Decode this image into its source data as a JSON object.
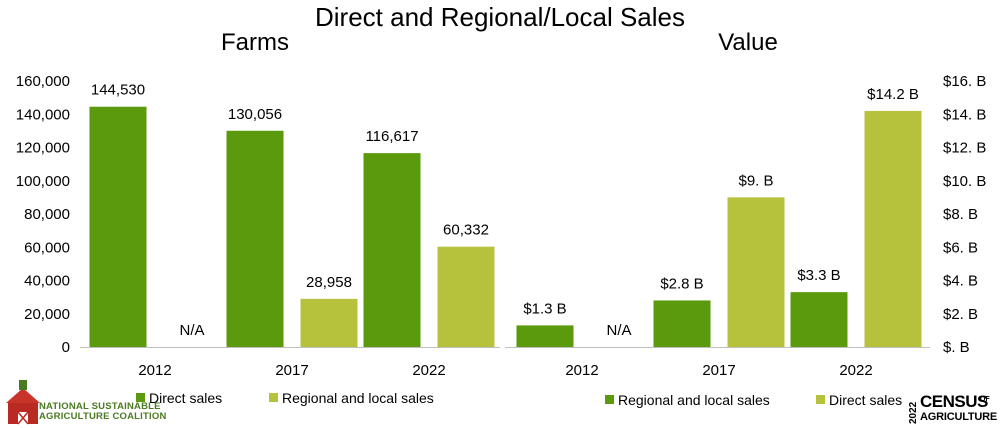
{
  "title": "Direct and Regional/Local Sales",
  "colors": {
    "dark_green": "#5a9a0c",
    "light_green": "#b6c23c",
    "axis": "#bfbfbf"
  },
  "chart_data": [
    {
      "type": "bar",
      "subtitle": "Farms",
      "categories": [
        "2012",
        "2017",
        "2022"
      ],
      "series": [
        {
          "name": "Direct sales",
          "color": "#5a9a0c",
          "values": [
            144530,
            130056,
            116617
          ],
          "labels": [
            "144,530",
            "130,056",
            "116,617"
          ]
        },
        {
          "name": "Regional and local sales",
          "color": "#b6c23c",
          "values": [
            null,
            28958,
            60332
          ],
          "labels": [
            "N/A",
            "28,958",
            "60,332"
          ]
        }
      ],
      "ylim": [
        0,
        160000
      ],
      "yticks": [
        "0",
        "20,000",
        "40,000",
        "60,000",
        "80,000",
        "100,000",
        "120,000",
        "140,000",
        "160,000"
      ],
      "axis_side": "left",
      "legend": "bottom"
    },
    {
      "type": "bar",
      "subtitle": "Value",
      "categories": [
        "2012",
        "2017",
        "2022"
      ],
      "series": [
        {
          "name": "Regional and local sales",
          "color": "#5a9a0c",
          "values": [
            1.3,
            2.8,
            3.3
          ],
          "labels": [
            "$1.3 B",
            "$2.8 B",
            "$3.3 B"
          ]
        },
        {
          "name": "Direct sales",
          "color": "#b6c23c",
          "values": [
            null,
            9.0,
            14.2
          ],
          "labels": [
            "N/A",
            "$9. B",
            "$14.2 B"
          ]
        }
      ],
      "ylim": [
        0,
        16
      ],
      "yticks": [
        "$. B",
        "$2. B",
        "$4. B",
        "$6. B",
        "$8. B",
        "$10. B",
        "$12. B",
        "$14. B",
        "$16. B"
      ],
      "axis_side": "right",
      "legend": "bottom"
    }
  ],
  "logos": {
    "nsac_line1": "NATIONAL SUSTAINABLE",
    "nsac_line2": "AGRICULTURE COALITION",
    "census_year": "2022",
    "census_word": "CENSUS",
    "census_of": "OF",
    "census_ag": "AGRICULTURE"
  }
}
